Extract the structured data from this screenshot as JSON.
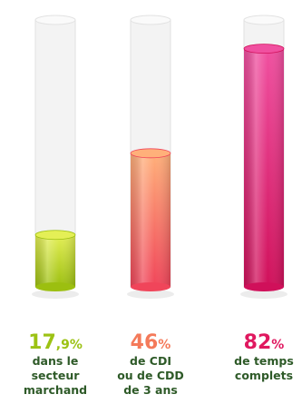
{
  "chart_data": {
    "type": "bar",
    "title": "",
    "xlabel": "",
    "ylabel": "",
    "ylim": [
      0,
      100
    ],
    "grid": false,
    "legend": "none",
    "bars": [
      {
        "value": 17.9,
        "value_main": "17",
        "value_rest": ",9%",
        "label_lines": [
          "dans le",
          "secteur",
          "marchand"
        ],
        "color_top": "#e4ef56",
        "color_bottom": "#9cbf10",
        "label_color": "#2e5a28",
        "value_color": "#9cc214"
      },
      {
        "value": 46,
        "value_main": "46",
        "value_rest": "%",
        "label_lines": [
          "de CDI",
          "ou de CDD",
          "de 3 ans"
        ],
        "color_top": "#ffb07a",
        "color_bottom": "#f0455a",
        "label_color": "#2e5a28",
        "value_color": "#f47a5a"
      },
      {
        "value": 82,
        "value_main": "82",
        "value_rest": "%",
        "label_lines": [
          "de temps",
          "complets"
        ],
        "color_top": "#f050a0",
        "color_bottom": "#d0105a",
        "label_color": "#2e5a28",
        "value_color": "#e0185f"
      }
    ]
  }
}
